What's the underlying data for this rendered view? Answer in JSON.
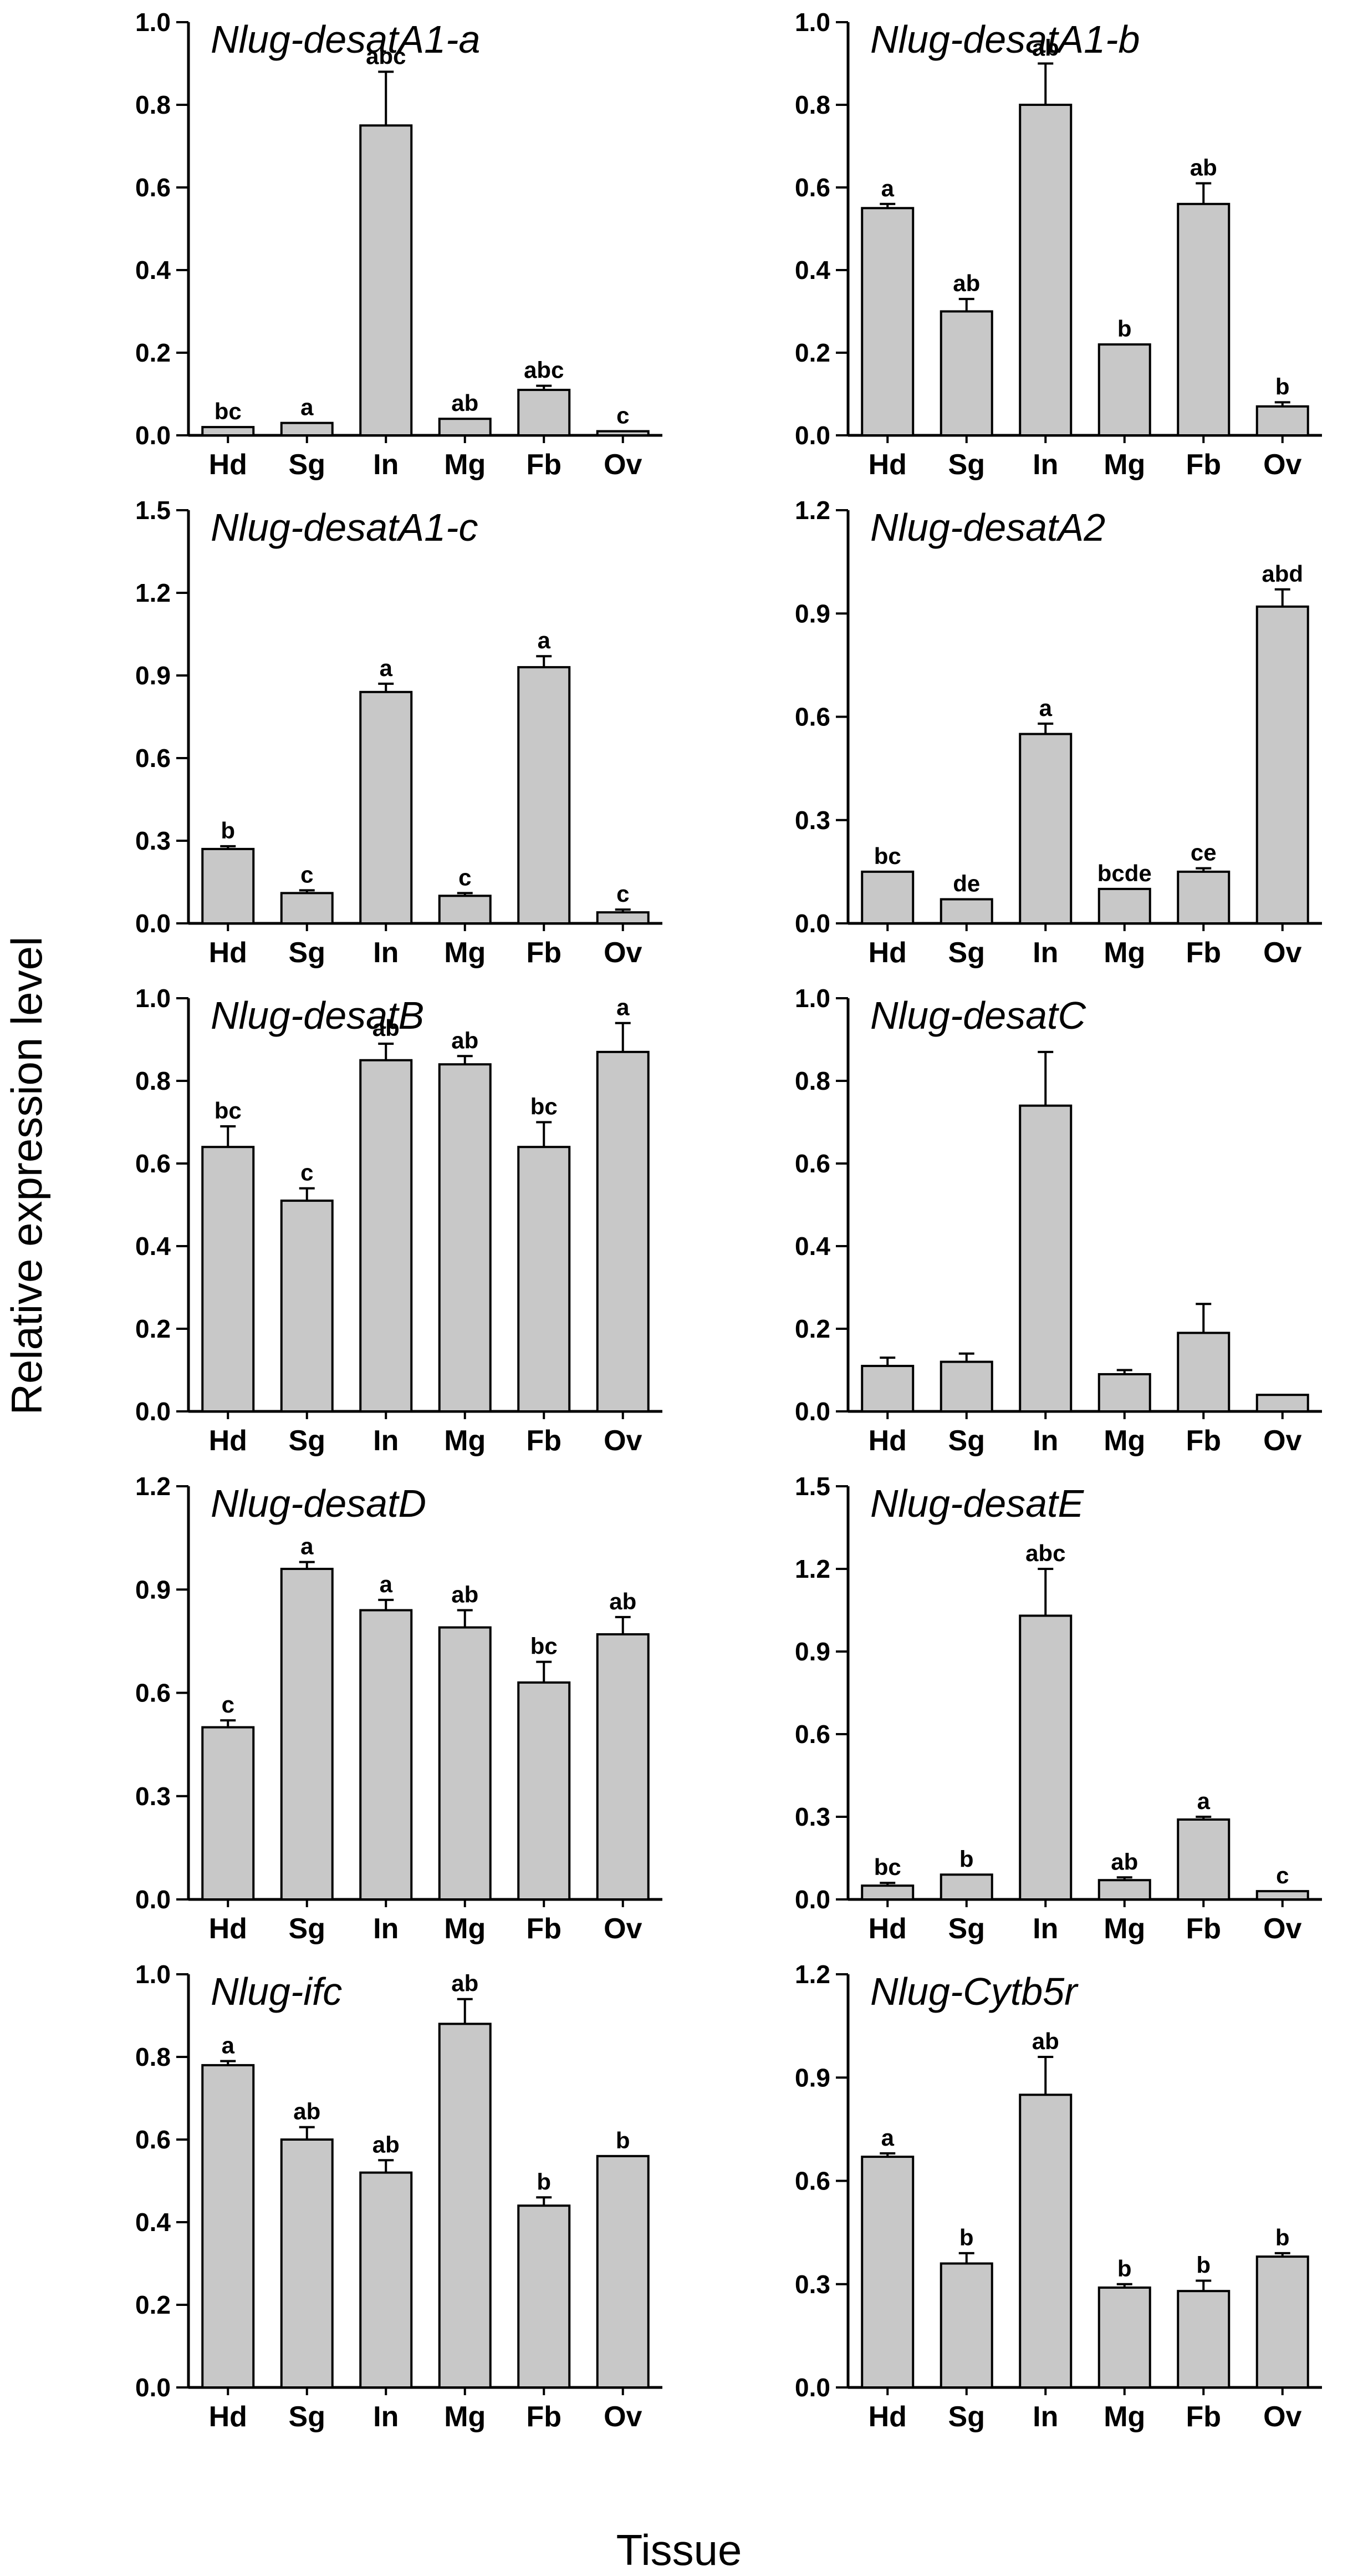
{
  "figure": {
    "ylabel": "Relative expression level",
    "xlabel": "Tissue",
    "bar_color": "#c8c8c8",
    "edge_color": "#000000"
  },
  "chart_data": [
    {
      "type": "bar",
      "title": "Nlug-desatA1-a",
      "categories": [
        "Hd",
        "Sg",
        "In",
        "Mg",
        "Fb",
        "Ov"
      ],
      "values": [
        0.02,
        0.03,
        0.75,
        0.04,
        0.11,
        0.01
      ],
      "errors": [
        0,
        0,
        0.13,
        0,
        0.01,
        0
      ],
      "labels": [
        "bc",
        "a",
        "abc",
        "ab",
        "abc",
        "c"
      ],
      "ylim": [
        0,
        1.0
      ],
      "yticks": [
        "0.0",
        "0.2",
        "0.4",
        "0.6",
        "0.8",
        "1.0"
      ]
    },
    {
      "type": "bar",
      "title": "Nlug-desatA1-b",
      "categories": [
        "Hd",
        "Sg",
        "In",
        "Mg",
        "Fb",
        "Ov"
      ],
      "values": [
        0.55,
        0.3,
        0.8,
        0.22,
        0.56,
        0.07
      ],
      "errors": [
        0.01,
        0.03,
        0.1,
        0,
        0.05,
        0.01
      ],
      "labels": [
        "a",
        "ab",
        "ab",
        "b",
        "ab",
        "b"
      ],
      "ylim": [
        0,
        1.0
      ],
      "yticks": [
        "0.0",
        "0.2",
        "0.4",
        "0.6",
        "0.8",
        "1.0"
      ]
    },
    {
      "type": "bar",
      "title": "Nlug-desatA1-c",
      "categories": [
        "Hd",
        "Sg",
        "In",
        "Mg",
        "Fb",
        "Ov"
      ],
      "values": [
        0.27,
        0.11,
        0.84,
        0.1,
        0.93,
        0.04
      ],
      "errors": [
        0.01,
        0.01,
        0.03,
        0.01,
        0.04,
        0.01
      ],
      "labels": [
        "b",
        "c",
        "a",
        "c",
        "a",
        "c"
      ],
      "ylim": [
        0,
        1.5
      ],
      "yticks": [
        "0.0",
        "0.3",
        "0.6",
        "0.9",
        "1.2",
        "1.5"
      ]
    },
    {
      "type": "bar",
      "title": "Nlug-desatA2",
      "categories": [
        "Hd",
        "Sg",
        "In",
        "Mg",
        "Fb",
        "Ov"
      ],
      "values": [
        0.15,
        0.07,
        0.55,
        0.1,
        0.15,
        0.92
      ],
      "errors": [
        0,
        0,
        0.03,
        0,
        0.01,
        0.05
      ],
      "labels": [
        "bc",
        "de",
        "a",
        "bcde",
        "ce",
        "abd"
      ],
      "ylim": [
        0,
        1.2
      ],
      "yticks": [
        "0.0",
        "0.3",
        "0.6",
        "0.9",
        "1.2"
      ]
    },
    {
      "type": "bar",
      "title": "Nlug-desatB",
      "categories": [
        "Hd",
        "Sg",
        "In",
        "Mg",
        "Fb",
        "Ov"
      ],
      "values": [
        0.64,
        0.51,
        0.85,
        0.84,
        0.64,
        0.87
      ],
      "errors": [
        0.05,
        0.03,
        0.04,
        0.02,
        0.06,
        0.07
      ],
      "labels": [
        "bc",
        "c",
        "ab",
        "ab",
        "bc",
        "a"
      ],
      "ylim": [
        0,
        1.0
      ],
      "yticks": [
        "0.0",
        "0.2",
        "0.4",
        "0.6",
        "0.8",
        "1.0"
      ]
    },
    {
      "type": "bar",
      "title": "Nlug-desatC",
      "categories": [
        "Hd",
        "Sg",
        "In",
        "Mg",
        "Fb",
        "Ov"
      ],
      "values": [
        0.11,
        0.12,
        0.74,
        0.09,
        0.19,
        0.04
      ],
      "errors": [
        0.02,
        0.02,
        0.13,
        0.01,
        0.07,
        0
      ],
      "labels": [
        "",
        "",
        "",
        "",
        "",
        ""
      ],
      "ylim": [
        0,
        1.0
      ],
      "yticks": [
        "0.0",
        "0.2",
        "0.4",
        "0.6",
        "0.8",
        "1.0"
      ]
    },
    {
      "type": "bar",
      "title": "Nlug-desatD",
      "categories": [
        "Hd",
        "Sg",
        "In",
        "Mg",
        "Fb",
        "Ov"
      ],
      "values": [
        0.5,
        0.96,
        0.84,
        0.79,
        0.63,
        0.77
      ],
      "errors": [
        0.02,
        0.02,
        0.03,
        0.05,
        0.06,
        0.05
      ],
      "labels": [
        "c",
        "a",
        "a",
        "ab",
        "bc",
        "ab"
      ],
      "ylim": [
        0,
        1.2
      ],
      "yticks": [
        "0.0",
        "0.3",
        "0.6",
        "0.9",
        "1.2"
      ]
    },
    {
      "type": "bar",
      "title": "Nlug-desatE",
      "categories": [
        "Hd",
        "Sg",
        "In",
        "Mg",
        "Fb",
        "Ov"
      ],
      "values": [
        0.05,
        0.09,
        1.03,
        0.07,
        0.29,
        0.03
      ],
      "errors": [
        0.01,
        0,
        0.17,
        0.01,
        0.01,
        0
      ],
      "labels": [
        "bc",
        "b",
        "abc",
        "ab",
        "a",
        "c"
      ],
      "ylim": [
        0,
        1.5
      ],
      "yticks": [
        "0.0",
        "0.3",
        "0.6",
        "0.9",
        "1.2",
        "1.5"
      ]
    },
    {
      "type": "bar",
      "title": "Nlug-ifc",
      "categories": [
        "Hd",
        "Sg",
        "In",
        "Mg",
        "Fb",
        "Ov"
      ],
      "values": [
        0.78,
        0.6,
        0.52,
        0.88,
        0.44,
        0.56
      ],
      "errors": [
        0.01,
        0.03,
        0.03,
        0.06,
        0.02,
        0
      ],
      "labels": [
        "a",
        "ab",
        "ab",
        "ab",
        "b",
        "b"
      ],
      "ylim": [
        0,
        1.0
      ],
      "yticks": [
        "0.0",
        "0.2",
        "0.4",
        "0.6",
        "0.8",
        "1.0"
      ]
    },
    {
      "type": "bar",
      "title": "Nlug-Cytb5r",
      "categories": [
        "Hd",
        "Sg",
        "In",
        "Mg",
        "Fb",
        "Ov"
      ],
      "values": [
        0.67,
        0.36,
        0.85,
        0.29,
        0.28,
        0.38
      ],
      "errors": [
        0.01,
        0.03,
        0.11,
        0.01,
        0.03,
        0.01
      ],
      "labels": [
        "a",
        "b",
        "ab",
        "b",
        "b",
        "b"
      ],
      "ylim": [
        0,
        1.2
      ],
      "yticks": [
        "0.0",
        "0.3",
        "0.6",
        "0.9",
        "1.2"
      ]
    }
  ]
}
